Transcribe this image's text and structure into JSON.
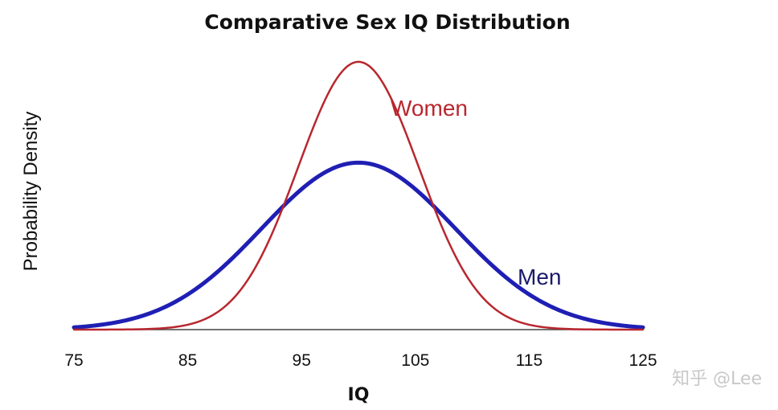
{
  "chart_data": {
    "type": "line",
    "title": "Comparative Sex IQ Distribution",
    "xlabel": "IQ",
    "ylabel": "Probability Density",
    "xlim": [
      75,
      125
    ],
    "ylim": [
      0,
      0.08
    ],
    "xticks": [
      "75",
      "85",
      "95",
      "105",
      "115",
      "125"
    ],
    "grid": false,
    "legend": "inline labels beside curves",
    "series": [
      {
        "name": "Women",
        "color": "#b8272e",
        "mean": 100,
        "sd": 5.3,
        "x": [
          75,
          80,
          85,
          87.5,
          90,
          92.5,
          95,
          97.5,
          100,
          102.5,
          105,
          107.5,
          110,
          112.5,
          115,
          120,
          125
        ],
        "values": [
          0.0,
          0.0001,
          0.0013,
          0.0045,
          0.0126,
          0.0279,
          0.0483,
          0.0673,
          0.0753,
          0.0673,
          0.0483,
          0.0279,
          0.0126,
          0.0045,
          0.0013,
          0.0001,
          0.0
        ]
      },
      {
        "name": "Men",
        "color": "#1f1fb4",
        "mean": 100,
        "sd": 8.5,
        "x": [
          75,
          80,
          85,
          87.5,
          90,
          92.5,
          95,
          97.5,
          100,
          102.5,
          105,
          107.5,
          110,
          112.5,
          115,
          120,
          125
        ],
        "values": [
          0.0006,
          0.0029,
          0.0099,
          0.016,
          0.0234,
          0.0317,
          0.0394,
          0.045,
          0.0469,
          0.045,
          0.0394,
          0.0317,
          0.0234,
          0.016,
          0.0099,
          0.0029,
          0.0006
        ]
      }
    ]
  },
  "watermark": "知乎 @Lee"
}
